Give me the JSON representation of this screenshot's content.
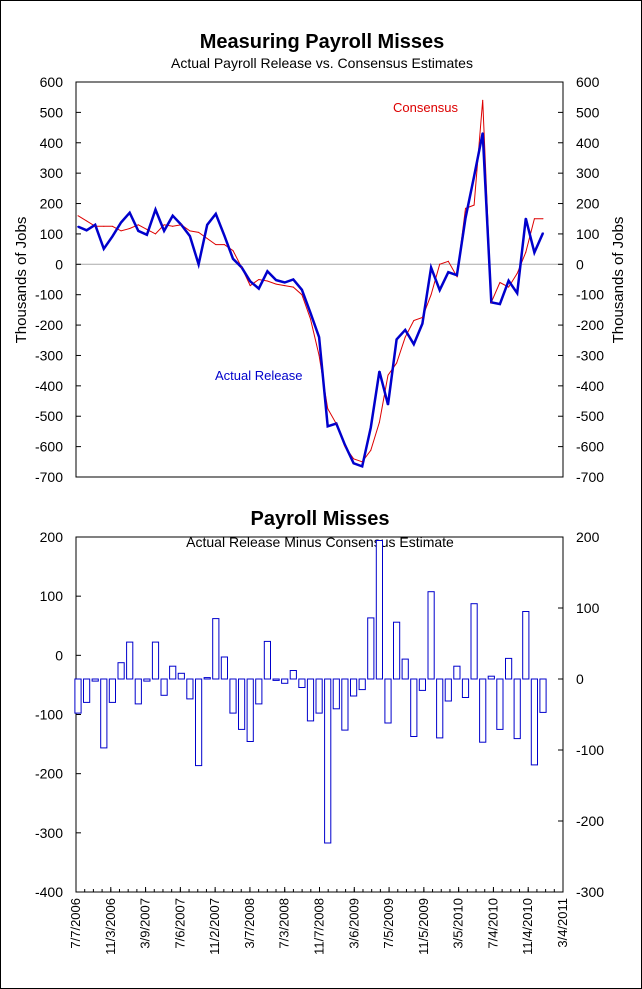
{
  "chart_data": [
    {
      "type": "line",
      "title": "Measuring Payroll Misses",
      "subtitle": "Actual Payroll Release vs. Consensus Estimates",
      "ylabel": "Thousands of Jobs",
      "ylabel_right": "Thousands of Jobs",
      "ylim": [
        -700,
        600
      ],
      "yticks": [
        600,
        500,
        400,
        300,
        200,
        100,
        0,
        -100,
        -200,
        -300,
        -400,
        -500,
        -600,
        -700
      ],
      "zero_line": true,
      "colors": {
        "Actual Release": "#0000cc",
        "Consensus": "#dd0000",
        "zero": "#aaaaaa"
      },
      "series": [
        {
          "name": "Actual Release",
          "annotation": "Actual Release",
          "values": [
            124,
            112,
            130,
            51,
            92,
            138,
            170,
            110,
            97,
            180,
            110,
            160,
            130,
            93,
            0,
            130,
            166,
            94,
            18,
            -10,
            -56,
            -80,
            -23,
            -52,
            -60,
            -50,
            -84,
            -160,
            -240,
            -533,
            -524,
            -594,
            -655,
            -665,
            -537,
            -352,
            -462,
            -247,
            -216,
            -263,
            -195,
            -11,
            -85,
            -26,
            -36,
            152,
            290,
            432,
            -125,
            -131,
            -54,
            -95,
            151,
            39,
            103
          ]
        },
        {
          "name": "Consensus",
          "annotation": "Consensus",
          "values": [
            160,
            143,
            125,
            125,
            125,
            110,
            118,
            130,
            115,
            100,
            130,
            125,
            130,
            110,
            105,
            85,
            65,
            65,
            45,
            -10,
            -70,
            -50,
            -55,
            -65,
            -70,
            -75,
            -100,
            -180,
            -300,
            -475,
            -525,
            -600,
            -640,
            -650,
            -612,
            -520,
            -365,
            -325,
            -240,
            -185,
            -175,
            -100,
            0,
            10,
            -40,
            184,
            195,
            540,
            -125,
            -60,
            -75,
            -30,
            40,
            150,
            150
          ]
        }
      ]
    },
    {
      "type": "bar",
      "title": "Payroll Misses",
      "subtitle": "Actual Release Minus Consensus Estimate",
      "ylim_left": [
        -400,
        200
      ],
      "yticks_left": [
        200,
        100,
        0,
        -100,
        -200,
        -300,
        -400
      ],
      "ylim_right": [
        -300,
        200
      ],
      "yticks_right": [
        200,
        100,
        0,
        -100,
        -200,
        -300
      ],
      "xlabels": [
        "7/7/2006",
        "11/3/2006",
        "3/9/2007",
        "7/6/2007",
        "11/2/2007",
        "3/7/2008",
        "7/3/2008",
        "11/7/2008",
        "3/6/2009",
        "7/5/2009",
        "11/5/2009",
        "3/5/2010",
        "7/4/2010",
        "11/4/2010",
        "3/4/2011"
      ],
      "bar_color": "#0000cc",
      "values": [
        -48,
        -33,
        -3,
        -97,
        -33,
        23,
        52,
        -35,
        -3,
        52,
        -23,
        18,
        8,
        -28,
        -122,
        2,
        85,
        31,
        -48,
        -71,
        -88,
        -35,
        53,
        -2,
        -6,
        12,
        -12,
        -59,
        -48,
        -231,
        -42,
        -72,
        -24,
        -15,
        86,
        195,
        -62,
        80,
        28,
        -81,
        -16,
        123,
        -83,
        -31,
        18,
        -26,
        106,
        -89,
        4,
        -71,
        29,
        -84,
        95,
        -121,
        -47
      ]
    }
  ]
}
